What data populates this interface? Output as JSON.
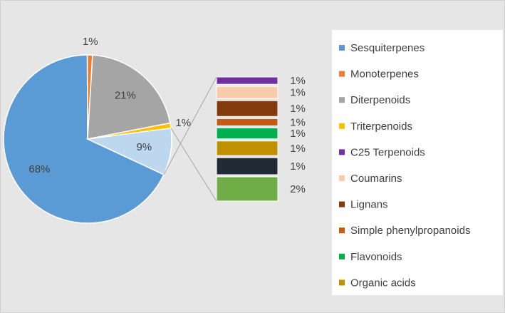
{
  "chart_data": {
    "type": "bar-of-pie",
    "pie": {
      "categories": [
        "Sesquiterpenes",
        "Monoterpenes",
        "Diterpenoids",
        "Triterpenoids",
        null
      ],
      "values": [
        68,
        1,
        21,
        1,
        9
      ],
      "value_labels": [
        "68%",
        "1%",
        "21%",
        "1%",
        "9%"
      ],
      "colors": [
        "#5b9bd5",
        "#ed7d31",
        "#a5a5a5",
        "#ffc000",
        "#bdd7ee"
      ]
    },
    "bar": {
      "categories": [
        "C25 Terpenoids",
        "Coumarins",
        "Lignans",
        "Simple phenylpropanoids",
        "Flavonoids",
        "Organic acids",
        null,
        null
      ],
      "values": [
        0.6,
        1.0,
        1.3,
        0.6,
        0.9,
        1.2,
        1.4,
        2.0
      ],
      "value_labels": [
        "1%",
        "1%",
        "1%",
        "1%",
        "1%",
        "1%",
        "1%",
        "2%"
      ],
      "colors": [
        "#7030a0",
        "#f8cbad",
        "#843c0c",
        "#c55a11",
        "#00b050",
        "#bf9000",
        "#222a35",
        "#70ad47"
      ]
    }
  }
}
